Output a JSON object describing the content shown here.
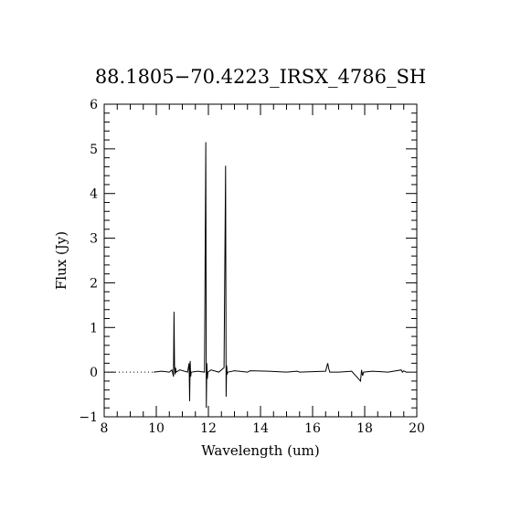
{
  "chart_data": {
    "type": "line",
    "title": "88.1805−70.4223_IRSX_4786_SH",
    "xlabel": "Wavelength (um)",
    "ylabel": "Flux (Jy)",
    "xlim": [
      8,
      20
    ],
    "ylim": [
      -1,
      6
    ],
    "x_ticks": [
      8,
      10,
      12,
      14,
      16,
      18,
      20
    ],
    "y_ticks": [
      -1,
      0,
      1,
      2,
      3,
      4,
      5,
      6
    ],
    "x_tick_labels": [
      "8",
      "10",
      "12",
      "14",
      "16",
      "18",
      "20"
    ],
    "y_tick_labels": [
      "−1",
      "0",
      "1",
      "2",
      "3",
      "4",
      "5",
      "6"
    ],
    "zero_line": {
      "y": 0,
      "x_range": [
        8,
        9.9
      ],
      "style": "dotted"
    },
    "series": [
      {
        "x": [
          9.9,
          10.2,
          10.5,
          10.6,
          10.66,
          10.68,
          10.7,
          10.72,
          10.74,
          10.76,
          10.9,
          11.2,
          11.26,
          11.28,
          11.3,
          11.32,
          11.34,
          11.6,
          11.85,
          11.9,
          11.92,
          11.94,
          11.96,
          11.98,
          12.1,
          12.4,
          12.6,
          12.66,
          12.68,
          12.7,
          12.72,
          12.74,
          13.0,
          13.5,
          13.6,
          14.3,
          15.0,
          15.4,
          15.5,
          16.0,
          16.5,
          16.58,
          16.62,
          16.66,
          17.0,
          17.5,
          17.84,
          17.88,
          17.92,
          17.96,
          18.3,
          18.9,
          19.4,
          19.45,
          19.5,
          19.6
        ],
        "y": [
          0.0,
          0.02,
          0.0,
          0.05,
          -0.1,
          1.35,
          0.15,
          -0.05,
          0.1,
          0.0,
          0.05,
          0.0,
          0.2,
          -0.65,
          0.25,
          -0.1,
          0.0,
          0.02,
          0.0,
          5.15,
          -0.8,
          0.2,
          -0.15,
          0.0,
          0.05,
          0.0,
          0.1,
          4.62,
          -0.55,
          0.15,
          -0.05,
          0.0,
          0.03,
          0.0,
          0.03,
          0.02,
          0.0,
          0.02,
          0.0,
          0.01,
          0.02,
          0.2,
          0.08,
          0.0,
          0.0,
          0.02,
          -0.2,
          0.05,
          -0.08,
          0.0,
          0.02,
          0.0,
          0.05,
          0.0,
          0.03,
          0.0
        ]
      }
    ]
  }
}
